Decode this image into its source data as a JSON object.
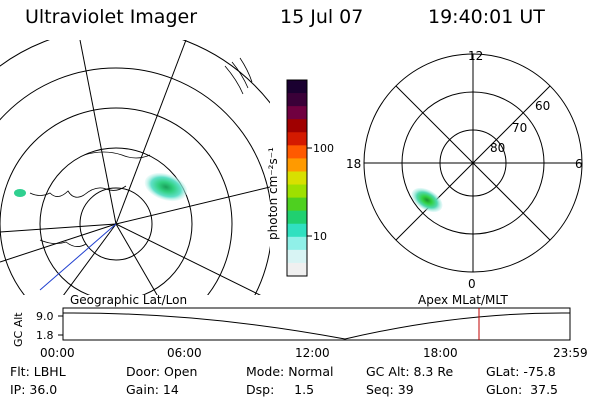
{
  "header": {
    "title": "Ultraviolet Imager",
    "date": "15 Jul 07",
    "time": "19:40:01 UT"
  },
  "left_panel": {
    "caption": "Geographic Lat/Lon"
  },
  "right_panel": {
    "caption": "Apex MLat/MLT",
    "mlt_labels": {
      "top": "12",
      "left": "18",
      "right": "6",
      "bottom": "0"
    },
    "lat_labels": [
      "60",
      "70",
      "80"
    ]
  },
  "colorbar": {
    "unit": "photon cm⁻²s⁻¹",
    "ticks": [
      "100",
      "10"
    ],
    "colors": [
      "#1a0030",
      "#3a0038",
      "#700040",
      "#a00000",
      "#d41a00",
      "#ff5a00",
      "#ff9a00",
      "#d8e000",
      "#9ee000",
      "#4ed020",
      "#20d070",
      "#30e0c0",
      "#90f0e8",
      "#d8f4f4",
      "#f0f0f0"
    ]
  },
  "altitude_plot": {
    "ylabel": "GC Alt",
    "ytick_top": "9.0",
    "ytick_bottom": "1.8",
    "xticks": [
      "00:00",
      "06:00",
      "12:00",
      "18:00",
      "23:59"
    ],
    "marker_time": "19:40"
  },
  "info": {
    "flt": "Flt: LBHL",
    "ip": "IP: 36.0",
    "door": "Door: Open",
    "gain": "Gain: 14",
    "mode": "Mode: Normal",
    "dsp": "Dsp:     1.5",
    "gcalt": "GC Alt: 8.3 Re",
    "seq": "Seq: 39",
    "glat": "GLat: -75.8",
    "glon": "GLon:  37.5"
  }
}
